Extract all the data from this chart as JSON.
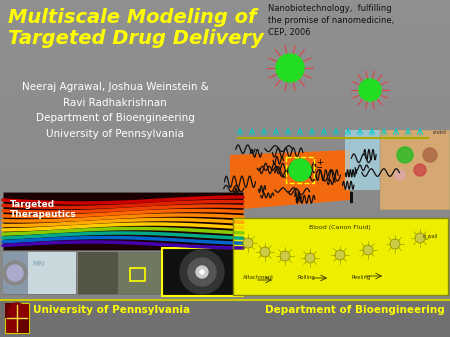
{
  "bg_color": "#909090",
  "title_line1": "Multiscale Modeling of",
  "title_line2": "Targeted Drug Delivery",
  "title_color": "#FFFF00",
  "title_fontsize": 14,
  "authors_line1": "Neeraj Agrawal, Joshua Weinstein &",
  "authors_line2": "Ravi Radhakrishnan",
  "dept_line": "Department of Bioengineering",
  "univ_line": "University of Pennsylvania",
  "authors_color": "#FFFFFF",
  "authors_fontsize": 7.5,
  "citation_text": "Nanobiotechnology,  fulfilling\nthe promise of nanomedicine,\nCEP, 2006",
  "citation_color": "#111111",
  "citation_fontsize": 6.0,
  "footer_bg": "#707070",
  "footer_line_color": "#CCCC00",
  "footer_left": "University of Pennsylvania",
  "footer_right": "Department of Bioengineering",
  "footer_color": "#FFFF00",
  "footer_fontsize": 7.5,
  "targeted_label": "Targeted\nTherapeutics",
  "targeted_color": "#FFFFFF",
  "targeted_fontsize": 6.5,
  "blood_text": "Blood (Canon Fluid)",
  "attachment_text": "Attachment",
  "rolling_text": "Rolling",
  "peeling_text": "Peeling"
}
